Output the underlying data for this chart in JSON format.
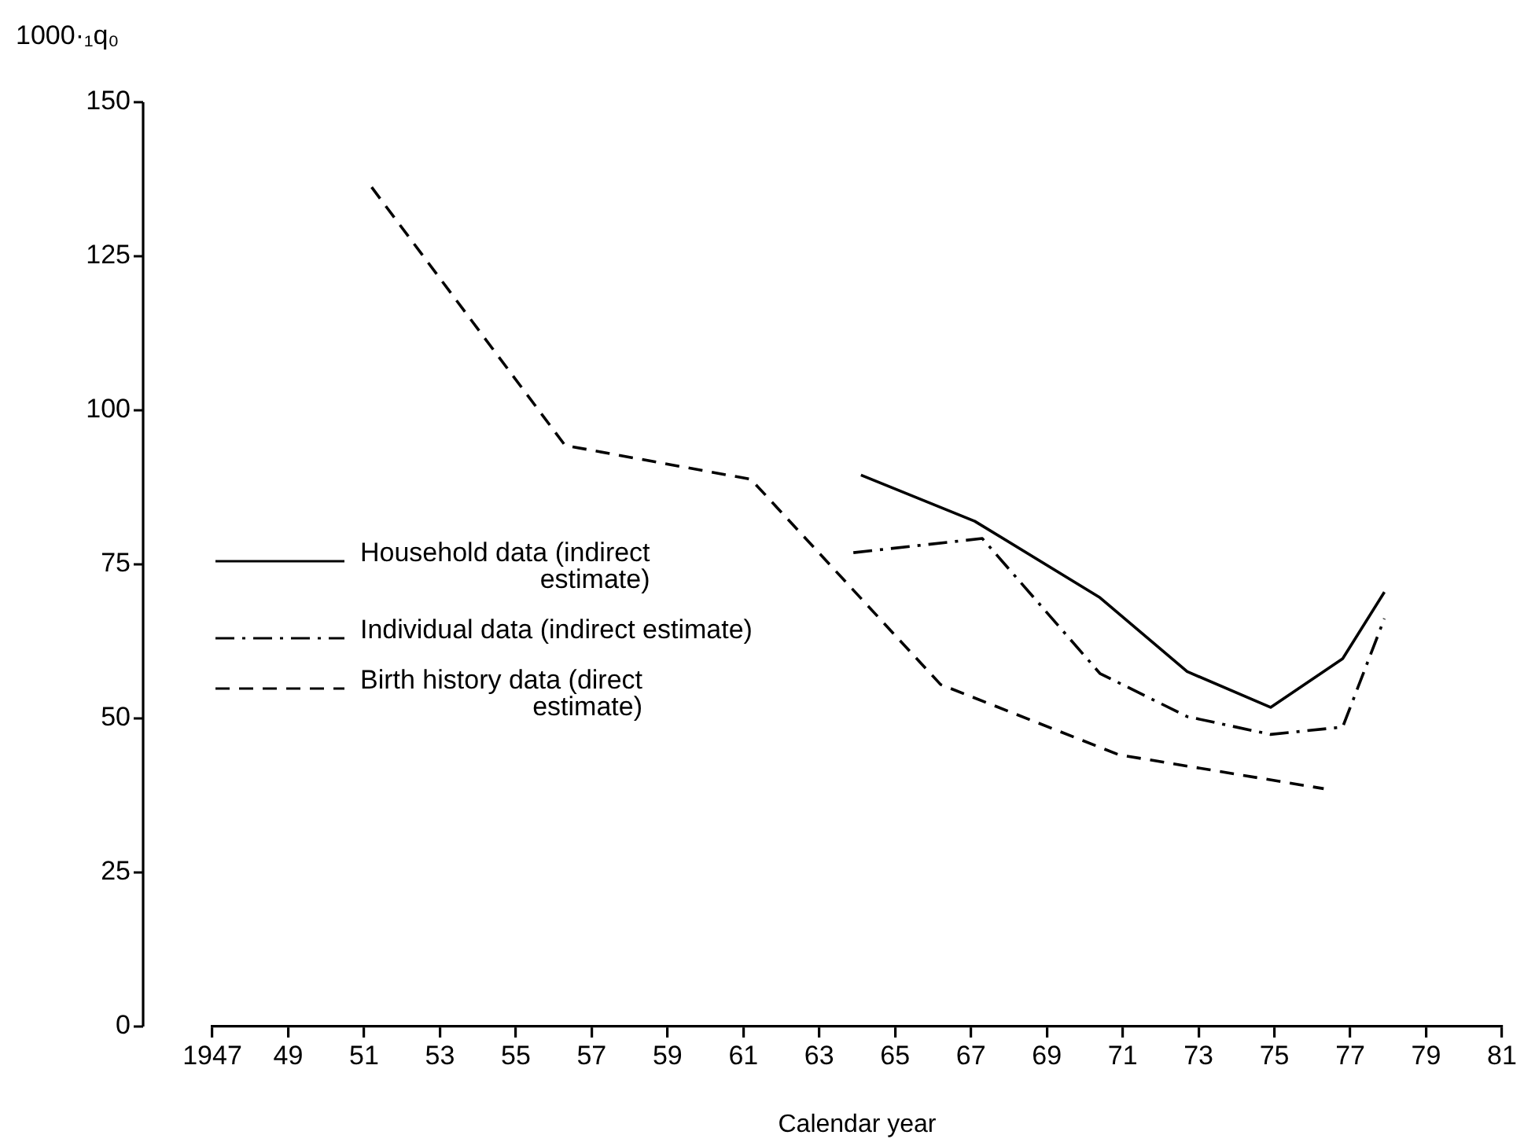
{
  "chart_data": {
    "type": "line",
    "xlabel": "Calendar year",
    "ylabel": "1000·₁q₀",
    "xlim": [
      1947,
      1981
    ],
    "xticks": [
      {
        "value": 1947,
        "label": "1947"
      },
      {
        "value": 1949,
        "label": "49"
      },
      {
        "value": 1951,
        "label": "51"
      },
      {
        "value": 1953,
        "label": "53"
      },
      {
        "value": 1955,
        "label": "55"
      },
      {
        "value": 1957,
        "label": "57"
      },
      {
        "value": 1959,
        "label": "59"
      },
      {
        "value": 1961,
        "label": "61"
      },
      {
        "value": 1963,
        "label": "63"
      },
      {
        "value": 1965,
        "label": "65"
      },
      {
        "value": 1967,
        "label": "67"
      },
      {
        "value": 1969,
        "label": "69"
      },
      {
        "value": 1971,
        "label": "71"
      },
      {
        "value": 1973,
        "label": "73"
      },
      {
        "value": 1975,
        "label": "75"
      },
      {
        "value": 1977,
        "label": "77"
      },
      {
        "value": 1979,
        "label": "79"
      },
      {
        "value": 1981,
        "label": "81"
      }
    ],
    "ylim": [
      0,
      150
    ],
    "yticks": [
      0,
      25,
      50,
      75,
      100,
      125,
      150
    ],
    "grid": false,
    "legend": "bottom left",
    "marker": "none",
    "series": [
      {
        "name": "Household data (indirect estimate)",
        "color": "#000000",
        "line_style": "solid",
        "x": [
          1964.1,
          1967.1,
          1970.4,
          1972.7,
          1974.9,
          1976.8,
          1977.9
        ],
        "values": [
          89.5,
          82,
          69.6,
          57.6,
          51.8,
          59.7,
          70.5
        ]
      },
      {
        "name": "Individual data (indirect estimate)",
        "color": "#000000",
        "line_style": "dashdot",
        "x": [
          1963.9,
          1967.3,
          1970.4,
          1972.7,
          1974.9,
          1976.8,
          1977.9
        ],
        "values": [
          76.9,
          79.2,
          57.3,
          50.3,
          47.4,
          48.6,
          66.2
        ]
      },
      {
        "name": "Birth history data (direct estimate)",
        "color": "#000000",
        "line_style": "dashed",
        "x": [
          1951.2,
          1956.3,
          1961.2,
          1966.2,
          1970.9,
          1976.3
        ],
        "values": [
          136.2,
          94.3,
          88.8,
          55.5,
          44.1,
          38.6
        ]
      }
    ]
  }
}
